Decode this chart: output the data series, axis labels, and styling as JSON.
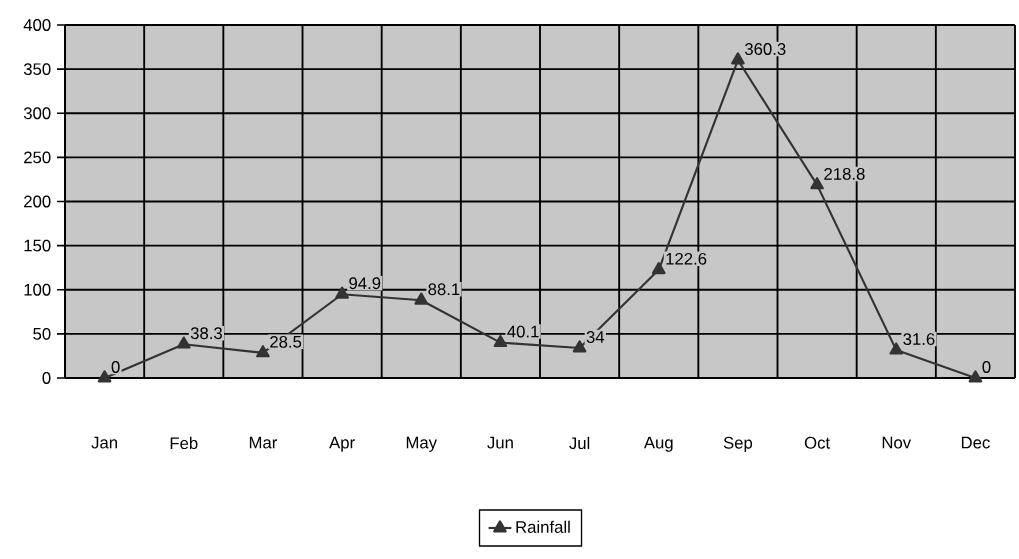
{
  "chart_data": {
    "type": "line",
    "categories": [
      "Jan",
      "Feb",
      "Mar",
      "Apr",
      "May",
      "Jun",
      "Jul",
      "Aug",
      "Sep",
      "Oct",
      "Nov",
      "Dec"
    ],
    "series": [
      {
        "name": "Rainfall",
        "color": "#333333",
        "values": [
          0,
          38.3,
          28.5,
          94.9,
          88.1,
          40.1,
          34,
          122.6,
          360.3,
          218.8,
          31.6,
          0
        ]
      }
    ],
    "ylim": [
      0,
      400
    ],
    "yticks": [
      0,
      50,
      100,
      150,
      200,
      250,
      300,
      350,
      400
    ],
    "grid": true,
    "legend": "bottom",
    "marker": "triangle",
    "line_style": "solid",
    "data_labels": true
  }
}
